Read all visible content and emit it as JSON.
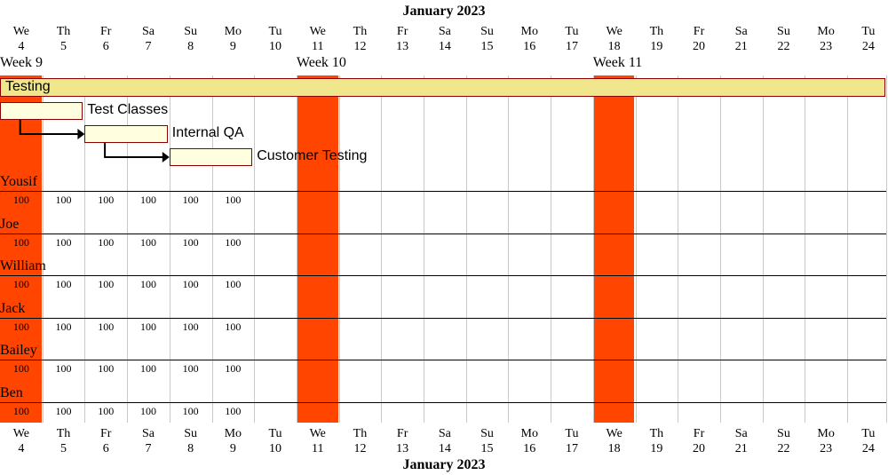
{
  "calendar": {
    "month_label": "January 2023",
    "days": [
      {
        "dow": "We",
        "date": "4"
      },
      {
        "dow": "Th",
        "date": "5"
      },
      {
        "dow": "Fr",
        "date": "6"
      },
      {
        "dow": "Sa",
        "date": "7"
      },
      {
        "dow": "Su",
        "date": "8"
      },
      {
        "dow": "Mo",
        "date": "9"
      },
      {
        "dow": "Tu",
        "date": "10"
      },
      {
        "dow": "We",
        "date": "11"
      },
      {
        "dow": "Th",
        "date": "12"
      },
      {
        "dow": "Fr",
        "date": "13"
      },
      {
        "dow": "Sa",
        "date": "14"
      },
      {
        "dow": "Su",
        "date": "15"
      },
      {
        "dow": "Mo",
        "date": "16"
      },
      {
        "dow": "Tu",
        "date": "17"
      },
      {
        "dow": "We",
        "date": "18"
      },
      {
        "dow": "Th",
        "date": "19"
      },
      {
        "dow": "Fr",
        "date": "20"
      },
      {
        "dow": "Sa",
        "date": "21"
      },
      {
        "dow": "Su",
        "date": "22"
      },
      {
        "dow": "Mo",
        "date": "23"
      },
      {
        "dow": "Tu",
        "date": "24"
      }
    ],
    "weeks": [
      {
        "label": "Week 9",
        "start_index": 0
      },
      {
        "label": "Week 10",
        "start_index": 7
      },
      {
        "label": "Week 11",
        "start_index": 14
      }
    ],
    "highlighted_day_indexes": [
      0,
      7,
      14
    ]
  },
  "tasks": [
    {
      "name": "Testing",
      "start_index": 0,
      "days": 21,
      "type": "summary"
    },
    {
      "name": "Test Classes",
      "start_index": 0,
      "days": 2,
      "type": "task"
    },
    {
      "name": "Internal QA",
      "start_index": 2,
      "days": 2,
      "type": "task"
    },
    {
      "name": "Customer Testing",
      "start_index": 4,
      "days": 2,
      "type": "task"
    }
  ],
  "dependencies": [
    {
      "from": 1,
      "to": 2
    },
    {
      "from": 2,
      "to": 3
    }
  ],
  "resources": [
    {
      "name": "Yousif",
      "values": [
        "100",
        "100",
        "100",
        "100",
        "100",
        "100"
      ]
    },
    {
      "name": "Joe",
      "values": [
        "100",
        "100",
        "100",
        "100",
        "100",
        "100"
      ]
    },
    {
      "name": "William",
      "values": [
        "100",
        "100",
        "100",
        "100",
        "100",
        "100"
      ]
    },
    {
      "name": "Jack",
      "values": [
        "100",
        "100",
        "100",
        "100",
        "100",
        "100"
      ]
    },
    {
      "name": "Bailey",
      "values": [
        "100",
        "100",
        "100",
        "100",
        "100",
        "100"
      ]
    },
    {
      "name": "Ben",
      "values": [
        "100",
        "100",
        "100",
        "100",
        "100",
        "100"
      ]
    }
  ],
  "colors": {
    "weekend": "#ff4500",
    "summary_fill": "#f0e68c",
    "task_fill": "#ffffe0",
    "task_border": "#8b0000",
    "grid": "#c8c8c8"
  }
}
